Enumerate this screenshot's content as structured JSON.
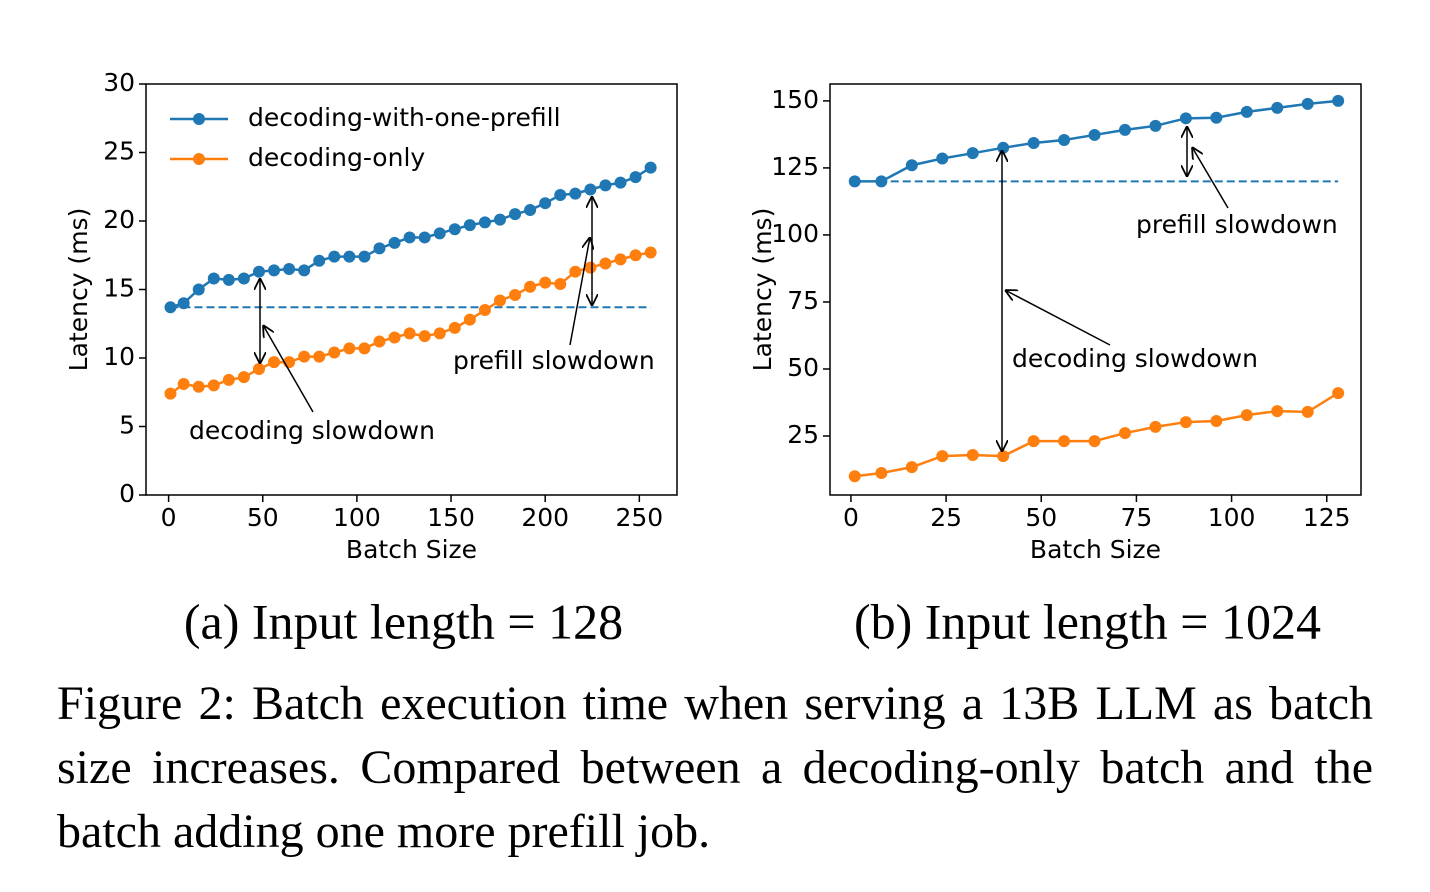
{
  "chart_data": [
    {
      "type": "line",
      "caption": "(a) Input length = 128",
      "xlabel": "Batch Size",
      "ylabel": "Latency (ms)",
      "x": [
        1,
        8,
        16,
        24,
        32,
        40,
        48,
        56,
        64,
        72,
        80,
        88,
        96,
        104,
        112,
        120,
        128,
        136,
        144,
        152,
        160,
        168,
        176,
        184,
        192,
        200,
        208,
        216,
        224,
        232,
        240,
        248,
        256
      ],
      "series": [
        {
          "name": "decoding-with-one-prefill",
          "color": "#1f77b4",
          "values": [
            13.7,
            14.0,
            15.0,
            15.8,
            15.7,
            15.8,
            16.3,
            16.4,
            16.5,
            16.4,
            17.1,
            17.4,
            17.4,
            17.4,
            18.0,
            18.4,
            18.8,
            18.8,
            19.1,
            19.4,
            19.7,
            19.9,
            20.1,
            20.5,
            20.8,
            21.3,
            21.9,
            22.0,
            22.3,
            22.6,
            22.8,
            23.2,
            23.9
          ]
        },
        {
          "name": "decoding-only",
          "color": "#ff7f0e",
          "values": [
            7.4,
            8.1,
            7.9,
            8.0,
            8.4,
            8.6,
            9.2,
            9.7,
            9.7,
            10.1,
            10.1,
            10.4,
            10.7,
            10.7,
            11.2,
            11.5,
            11.8,
            11.6,
            11.8,
            12.2,
            12.8,
            13.5,
            14.2,
            14.6,
            15.2,
            15.5,
            15.4,
            16.3,
            16.6,
            16.9,
            17.2,
            17.5,
            17.7
          ]
        }
      ],
      "baseline": {
        "value": 13.7,
        "color": "#1f77b4"
      },
      "annotations": [
        "decoding slowdown",
        "prefill slowdown"
      ],
      "xlim": [
        -12,
        270
      ],
      "xticks": [
        0,
        50,
        100,
        150,
        200,
        250
      ],
      "ylim": [
        0,
        30
      ],
      "yticks": [
        0,
        5,
        10,
        15,
        20,
        25,
        30
      ],
      "legend": "upper left"
    },
    {
      "type": "line",
      "caption": "(b) Input length = 1024",
      "xlabel": "Batch Size",
      "ylabel": "Latency (ms)",
      "x": [
        1,
        8,
        16,
        24,
        32,
        40,
        48,
        56,
        64,
        72,
        80,
        88,
        96,
        104,
        112,
        120,
        128
      ],
      "series": [
        {
          "name": "decoding-with-one-prefill",
          "color": "#1f77b4",
          "values": [
            120,
            120,
            126,
            128.5,
            130.5,
            132.5,
            134.3,
            135.4,
            137.3,
            139.2,
            140.7,
            143.5,
            143.7,
            145.9,
            147.4,
            148.9,
            150
          ]
        },
        {
          "name": "decoding-only",
          "color": "#ff7f0e",
          "values": [
            10,
            11.2,
            13.4,
            17.5,
            17.9,
            17.5,
            23.1,
            23.1,
            23.1,
            26.1,
            28.4,
            30.2,
            30.6,
            32.8,
            34.3,
            34,
            41
          ]
        }
      ],
      "baseline": {
        "value": 120,
        "color": "#1f77b4"
      },
      "annotations": [
        "decoding slowdown",
        "prefill slowdown"
      ],
      "xlim": [
        -5.5,
        134
      ],
      "xticks": [
        0,
        25,
        50,
        75,
        100,
        125
      ],
      "ylim": [
        3,
        156.3
      ],
      "yticks": [
        25,
        50,
        75,
        100,
        125,
        150
      ]
    }
  ],
  "figure_caption": "Figure 2: Batch execution time when serving a 13B LLM as batch size increases. Compared between a decoding-only batch and the batch adding one more prefill job."
}
